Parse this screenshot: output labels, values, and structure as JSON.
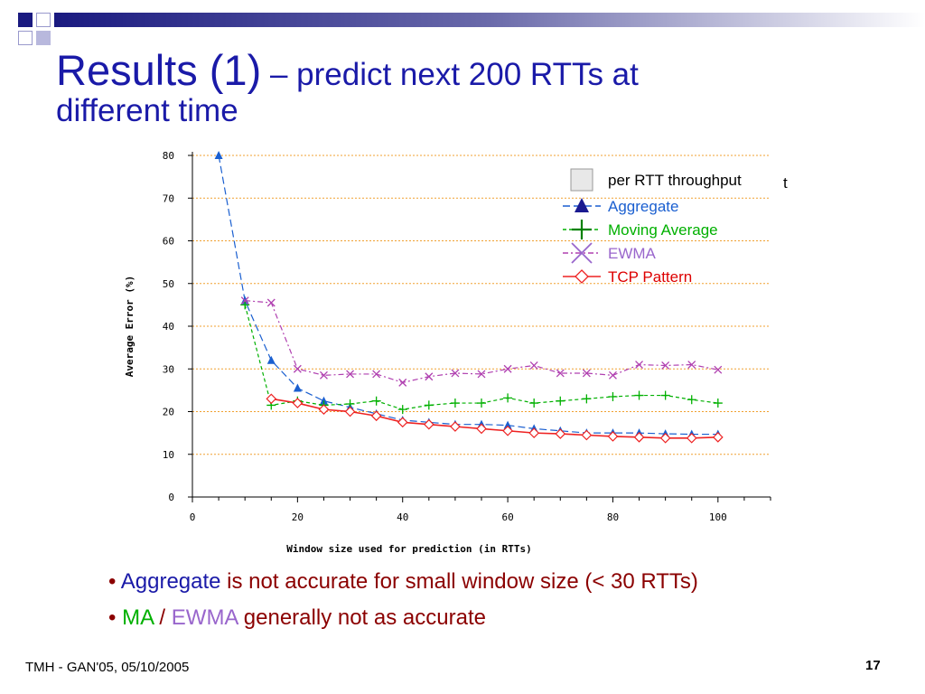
{
  "slide": {
    "title_main": "Results (1)",
    "title_sub": " – predict next 200 RTTs at",
    "title_line2": "different time",
    "bullets": [
      {
        "parts": [
          {
            "text": "Aggregate",
            "color": "#1a1aa8"
          },
          {
            "text": " is not accurate for small window size (< 30 RTTs)",
            "color": "#8b0000"
          }
        ]
      },
      {
        "parts": [
          {
            "text": "MA",
            "color": "#00b000"
          },
          {
            "text": " / ",
            "color": "#8b0000"
          },
          {
            "text": "EWMA",
            "color": "#9966cc"
          },
          {
            "text": " generally not as accurate",
            "color": "#8b0000"
          }
        ]
      }
    ],
    "footer_left": "TMH - GAN'05, 05/10/2005",
    "page_number": "17",
    "accent": "#1a1a80"
  },
  "chart_data": {
    "type": "line",
    "xlabel": "Window size used for prediction (in RTTs)",
    "ylabel": "Average Error (%)",
    "xlim": [
      0,
      110
    ],
    "ylim": [
      0,
      80
    ],
    "xticks": [
      0,
      20,
      40,
      60,
      80,
      100
    ],
    "yticks": [
      0,
      10,
      20,
      30,
      40,
      50,
      60,
      70,
      80
    ],
    "grid": "horizontal dotted orange",
    "legend_position": "top-right",
    "legend_header": "per RTT throughput",
    "series": [
      {
        "name": "Aggregate",
        "color": "#1a5fd0",
        "marker": "triangle",
        "dash": "8,4",
        "x": [
          5,
          10,
          15,
          20,
          25,
          30,
          35,
          40,
          45,
          50,
          55,
          60,
          65,
          70,
          75,
          80,
          85,
          90,
          95,
          100
        ],
        "y": [
          80,
          46,
          32,
          25.5,
          22.5,
          21,
          19.5,
          18,
          17.5,
          17,
          17,
          16.8,
          16,
          15.5,
          15,
          15,
          15,
          14.8,
          14.7,
          14.7
        ]
      },
      {
        "name": "Moving Average",
        "color": "#00b000",
        "marker": "plus",
        "dash": "4,3",
        "x": [
          10,
          15,
          20,
          25,
          30,
          35,
          40,
          45,
          50,
          55,
          60,
          65,
          70,
          75,
          80,
          85,
          90,
          95,
          100
        ],
        "y": [
          45,
          21.5,
          22.5,
          21.5,
          21.8,
          22.5,
          20.5,
          21.5,
          22,
          22,
          23.2,
          22,
          22.5,
          23,
          23.5,
          23.8,
          23.8,
          22.8,
          22
        ],
        "legend_label_color": "#00b000"
      },
      {
        "name": "EWMA",
        "color": "#b040b0",
        "marker": "x",
        "dash": "6,3,2,3",
        "x": [
          10,
          15,
          20,
          25,
          30,
          35,
          40,
          45,
          50,
          55,
          60,
          65,
          70,
          75,
          80,
          85,
          90,
          95,
          100
        ],
        "y": [
          46,
          45.5,
          30,
          28.5,
          28.8,
          28.8,
          26.8,
          28.2,
          29,
          28.8,
          30,
          30.8,
          29,
          29,
          28.5,
          31,
          30.8,
          31,
          29.8
        ],
        "legend_label_color": "#9966cc"
      },
      {
        "name": "TCP Pattern",
        "color": "#ee2222",
        "marker": "diamond",
        "dash": "",
        "x": [
          15,
          20,
          25,
          30,
          35,
          40,
          45,
          50,
          55,
          60,
          65,
          70,
          75,
          80,
          85,
          90,
          95,
          100
        ],
        "y": [
          23,
          22,
          20.5,
          20,
          19,
          17.5,
          17,
          16.5,
          16,
          15.5,
          15,
          14.8,
          14.5,
          14.2,
          14,
          13.8,
          13.8,
          14
        ],
        "legend_label_color": "#dd0000"
      }
    ]
  }
}
